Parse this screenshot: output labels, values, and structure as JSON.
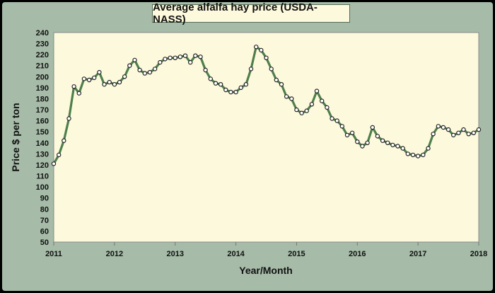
{
  "chart_data": {
    "type": "line",
    "title": "Average alfalfa hay price (USDA-NASS)",
    "xlabel": "Year/Month",
    "ylabel": "Price $ per ton",
    "xlim": [
      2011,
      2018
    ],
    "ylim": [
      50,
      240
    ],
    "y_step": 10,
    "x_ticks": [
      "2011",
      "2012",
      "2013",
      "2014",
      "2015",
      "2016",
      "2017",
      "2018"
    ],
    "grid": false,
    "colors": {
      "line": "#4e7f4c",
      "marker_fill": "#ffffff",
      "marker_edge": "#222222",
      "plot_bg": "#fdf9dc",
      "frame_bg": "#a6bba8"
    },
    "series": [
      {
        "values": [
          121,
          129,
          142,
          162,
          191,
          185,
          198,
          197,
          199,
          204,
          193,
          195,
          193,
          195,
          200,
          210,
          215,
          206,
          203,
          204,
          207,
          213,
          216,
          217,
          217,
          218,
          219,
          213,
          219,
          218,
          206,
          198,
          194,
          193,
          188,
          186,
          186,
          190,
          193,
          207,
          227,
          224,
          217,
          207,
          197,
          193,
          182,
          180,
          170,
          167,
          169,
          175,
          187,
          178,
          172,
          162,
          160,
          155,
          147,
          149,
          141,
          137,
          140,
          154,
          146,
          142,
          140,
          138,
          137,
          135,
          130,
          129,
          128,
          129,
          135,
          148,
          155,
          154,
          152,
          147,
          149,
          152,
          148,
          149,
          152
        ]
      }
    ]
  }
}
